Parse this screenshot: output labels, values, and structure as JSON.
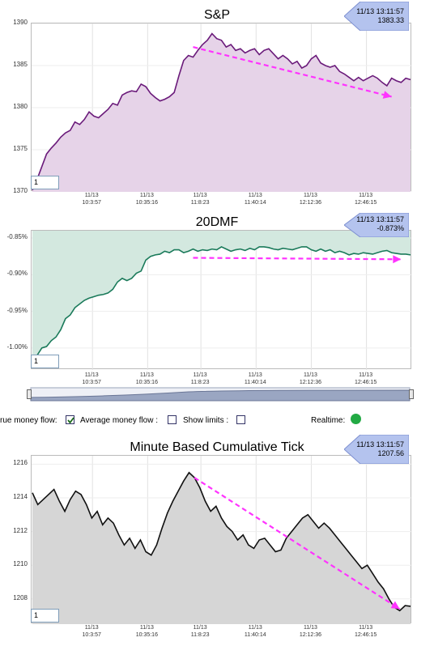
{
  "charts": [
    {
      "title": "S&P",
      "callout": {
        "time": "11/13 13:11:57",
        "value": "1383.33"
      },
      "period": "1",
      "chart_data": {
        "type": "area",
        "title": "S&P",
        "ylim": [
          1370,
          1390
        ],
        "yticks": [
          1370,
          1375,
          1380,
          1385,
          1390
        ],
        "xticks": [
          {
            "date": "11/13",
            "time": "10:3:57"
          },
          {
            "date": "11/13",
            "time": "10:35:16"
          },
          {
            "date": "11/13",
            "time": "11:8:23"
          },
          {
            "date": "11/13",
            "time": "11:40:14"
          },
          {
            "date": "11/13",
            "time": "12:12:36"
          },
          {
            "date": "11/13",
            "time": "12:46:15"
          }
        ],
        "line_color": "#6a1a7a",
        "fill_color": "#e6d3e8",
        "values": [
          1370.2,
          1371.5,
          1373.0,
          1374.5,
          1375.2,
          1375.8,
          1376.5,
          1377.0,
          1377.3,
          1378.3,
          1378.0,
          1378.6,
          1379.5,
          1379.0,
          1378.8,
          1379.3,
          1379.8,
          1380.5,
          1380.3,
          1381.5,
          1381.8,
          1382.0,
          1381.9,
          1382.8,
          1382.5,
          1381.7,
          1381.2,
          1380.8,
          1381.0,
          1381.3,
          1381.8,
          1383.8,
          1385.6,
          1386.2,
          1386.0,
          1386.8,
          1387.5,
          1388.0,
          1388.8,
          1388.2,
          1388.0,
          1387.2,
          1387.5,
          1386.8,
          1387.0,
          1386.5,
          1386.8,
          1387.0,
          1386.3,
          1386.8,
          1387.0,
          1386.4,
          1385.8,
          1386.2,
          1385.8,
          1385.2,
          1385.5,
          1384.7,
          1385.0,
          1385.8,
          1386.2,
          1385.3,
          1385.0,
          1384.8,
          1385.0,
          1384.3,
          1384.0,
          1383.6,
          1383.2,
          1383.6,
          1383.2,
          1383.5,
          1383.8,
          1383.5,
          1383.0,
          1382.6,
          1383.5,
          1383.2,
          1383.0,
          1383.5,
          1383.33
        ],
        "trend_arrow": {
          "from_index": 34,
          "from_value": 1387.2,
          "to_index": 76,
          "to_value": 1381.3,
          "color": "#ff33ff"
        }
      }
    },
    {
      "title": "20DMF",
      "callout": {
        "time": "11/13 13:11:57",
        "value": "-0.873%"
      },
      "period": "1",
      "chart_data": {
        "type": "area",
        "title": "20DMF",
        "ylim": [
          -1.03,
          -0.84
        ],
        "yticks": [
          -1.0,
          -0.95,
          -0.9,
          -0.85
        ],
        "ytick_labels": [
          "-1.00%",
          "-0.95%",
          "-0.90%",
          "-0.85%"
        ],
        "xticks": [
          {
            "date": "11/13",
            "time": "10:3:57"
          },
          {
            "date": "11/13",
            "time": "10:35:16"
          },
          {
            "date": "11/13",
            "time": "11:8:23"
          },
          {
            "date": "11/13",
            "time": "11:40:14"
          },
          {
            "date": "11/13",
            "time": "12:12:36"
          },
          {
            "date": "11/13",
            "time": "12:46:15"
          }
        ],
        "line_color": "#1a7a5a",
        "fill_color": "#d3e8df",
        "fill_above": true,
        "values": [
          -1.01,
          -1.01,
          -1.0,
          -0.998,
          -0.99,
          -0.985,
          -0.975,
          -0.96,
          -0.955,
          -0.945,
          -0.94,
          -0.935,
          -0.932,
          -0.93,
          -0.928,
          -0.927,
          -0.925,
          -0.92,
          -0.91,
          -0.905,
          -0.908,
          -0.905,
          -0.898,
          -0.895,
          -0.88,
          -0.875,
          -0.873,
          -0.872,
          -0.868,
          -0.87,
          -0.866,
          -0.866,
          -0.87,
          -0.868,
          -0.865,
          -0.868,
          -0.866,
          -0.867,
          -0.865,
          -0.866,
          -0.862,
          -0.865,
          -0.868,
          -0.866,
          -0.865,
          -0.867,
          -0.864,
          -0.866,
          -0.862,
          -0.862,
          -0.863,
          -0.865,
          -0.866,
          -0.864,
          -0.865,
          -0.866,
          -0.864,
          -0.862,
          -0.862,
          -0.866,
          -0.868,
          -0.865,
          -0.868,
          -0.866,
          -0.87,
          -0.868,
          -0.87,
          -0.873,
          -0.871,
          -0.872,
          -0.87,
          -0.871,
          -0.872,
          -0.87,
          -0.868,
          -0.867,
          -0.87,
          -0.871,
          -0.872,
          -0.872,
          -0.873
        ],
        "trend_arrow": {
          "from_index": 34,
          "from_value": -0.877,
          "to_index": 78,
          "to_value": -0.879,
          "color": "#ff33ff"
        }
      }
    },
    {
      "title": "Minute Based Cumulative Tick",
      "callout": {
        "time": "11/13 13:11:57",
        "value": "1207.56"
      },
      "period": "1",
      "chart_data": {
        "type": "area",
        "title": "Minute Based Cumulative Tick",
        "ylim": [
          1206.5,
          1216.5
        ],
        "yticks": [
          1208,
          1210,
          1212,
          1214,
          1216
        ],
        "xticks": [
          {
            "date": "11/13",
            "time": "10:3:57"
          },
          {
            "date": "11/13",
            "time": "10:35:16"
          },
          {
            "date": "11/13",
            "time": "11:8:23"
          },
          {
            "date": "11/13",
            "time": "11:40:14"
          },
          {
            "date": "11/13",
            "time": "12:12:36"
          },
          {
            "date": "11/13",
            "time": "12:46:15"
          }
        ],
        "line_color": "#111111",
        "fill_color": "#d6d6d6",
        "values": [
          1214.3,
          1213.6,
          1213.9,
          1214.2,
          1214.5,
          1213.8,
          1213.2,
          1213.9,
          1214.4,
          1214.2,
          1213.6,
          1212.8,
          1213.2,
          1212.4,
          1212.8,
          1212.5,
          1211.8,
          1211.2,
          1211.6,
          1211.0,
          1211.5,
          1210.8,
          1210.6,
          1211.2,
          1212.2,
          1213.1,
          1213.8,
          1214.4,
          1215.0,
          1215.5,
          1215.2,
          1214.6,
          1213.8,
          1213.2,
          1213.5,
          1212.8,
          1212.3,
          1212.0,
          1211.5,
          1211.8,
          1211.2,
          1211.0,
          1211.5,
          1211.6,
          1211.2,
          1210.8,
          1210.9,
          1211.6,
          1212.0,
          1212.4,
          1212.8,
          1213.0,
          1212.6,
          1212.2,
          1212.5,
          1212.2,
          1211.8,
          1211.4,
          1211.0,
          1210.6,
          1210.2,
          1209.8,
          1210.0,
          1209.5,
          1209.0,
          1208.6,
          1208.0,
          1207.5,
          1207.3,
          1207.6,
          1207.56
        ],
        "trend_arrow": {
          "from_index": 30,
          "from_value": 1215.2,
          "to_index": 68,
          "to_value": 1207.4,
          "color": "#ff33ff"
        }
      }
    }
  ],
  "controls": {
    "true_money_flow_label": "rue money flow:",
    "true_money_flow_checked": true,
    "average_money_flow_label": "Average money flow :",
    "average_money_flow_checked": false,
    "show_limits_label": "Show limits :",
    "show_limits_checked": false,
    "realtime_label": "Realtime:",
    "realtime_status_color": "#22aa44"
  }
}
